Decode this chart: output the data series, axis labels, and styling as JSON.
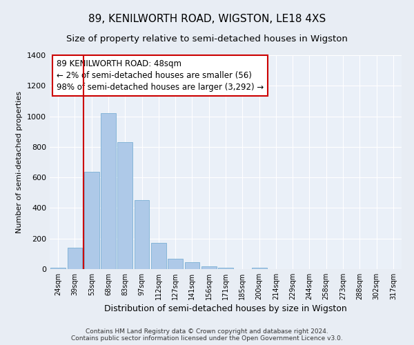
{
  "title": "89, KENILWORTH ROAD, WIGSTON, LE18 4XS",
  "subtitle": "Size of property relative to semi-detached houses in Wigston",
  "xlabel": "Distribution of semi-detached houses by size in Wigston",
  "ylabel": "Number of semi-detached properties",
  "categories": [
    "24sqm",
    "39sqm",
    "53sqm",
    "68sqm",
    "83sqm",
    "97sqm",
    "112sqm",
    "127sqm",
    "141sqm",
    "156sqm",
    "171sqm",
    "185sqm",
    "200sqm",
    "214sqm",
    "229sqm",
    "244sqm",
    "258sqm",
    "273sqm",
    "288sqm",
    "302sqm",
    "317sqm"
  ],
  "values": [
    10,
    140,
    635,
    1020,
    830,
    450,
    170,
    70,
    45,
    20,
    10,
    0,
    10,
    0,
    0,
    0,
    0,
    0,
    0,
    0,
    0
  ],
  "bar_color": "#aec9e8",
  "bar_edge_color": "#7aafd4",
  "vline_x": 2.0,
  "vline_color": "#cc0000",
  "annotation_box_text": "89 KENILWORTH ROAD: 48sqm\n← 2% of semi-detached houses are smaller (56)\n98% of semi-detached houses are larger (3,292) →",
  "ylim": [
    0,
    1400
  ],
  "yticks": [
    0,
    200,
    400,
    600,
    800,
    1000,
    1200,
    1400
  ],
  "bg_color": "#e8edf4",
  "plot_bg_color": "#eaf0f8",
  "footer_line1": "Contains HM Land Registry data © Crown copyright and database right 2024.",
  "footer_line2": "Contains public sector information licensed under the Open Government Licence v3.0.",
  "title_fontsize": 11,
  "subtitle_fontsize": 9.5,
  "xlabel_fontsize": 9,
  "ylabel_fontsize": 8,
  "annotation_fontsize": 8.5,
  "footer_fontsize": 6.5
}
